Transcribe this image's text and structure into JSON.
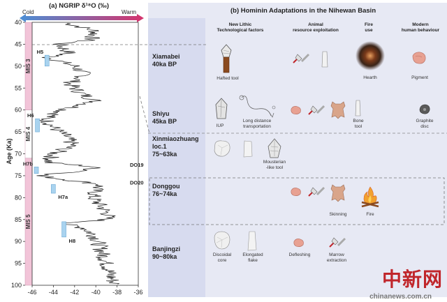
{
  "panel_a": {
    "title": "(a) NGRIP δ¹⁸O (‰)",
    "cold_label": "Cold",
    "warm_label": "Warm",
    "y_axis_label": "Age (Ka)",
    "x_ticks": [
      "-46",
      "-44",
      "-42",
      "-40",
      "-38",
      "-36"
    ],
    "y_ticks": [
      "40",
      "45",
      "50",
      "55",
      "60",
      "65",
      "70",
      "75",
      "80",
      "85",
      "90",
      "95",
      "100"
    ],
    "mis": [
      {
        "label": "MIS 3",
        "start": 40,
        "end": 60,
        "color": "#f2c4d8"
      },
      {
        "label": "MIS 4",
        "start": 60,
        "end": 71,
        "color": "#ffffff"
      },
      {
        "label": "MIS 5",
        "start": 71,
        "end": 100,
        "color": "#f2c4d8"
      }
    ],
    "heinrich": [
      {
        "label": "H5",
        "start": 47.5,
        "end": 50,
        "x": -44.8
      },
      {
        "label": "H6",
        "start": 62,
        "end": 65,
        "x": -45.7
      },
      {
        "label": "H7b",
        "start": 73,
        "end": 74.5,
        "x": -45.8
      },
      {
        "label": "H7a",
        "start": 77,
        "end": 79,
        "x": -44.2
      },
      {
        "label": "H8",
        "start": 85.5,
        "end": 89,
        "x": -43.2
      }
    ],
    "dansgaard_oeschger": [
      {
        "label": "DO19",
        "age": 72.5
      },
      {
        "label": "DO20",
        "age": 76.5
      }
    ]
  },
  "panel_b": {
    "title": "(b) Hominin Adaptations in the Nihewan Basin",
    "columns": [
      "New Lithic\nTechnological factors",
      "Animal\nresource exploitation",
      "Fire\nuse",
      "Modern\nhuman behaviour"
    ],
    "sites": [
      {
        "name": "Xiamabei\n40ka BP"
      },
      {
        "name": "Shiyu\n45ka BP"
      },
      {
        "name": "Xinmiaozhuang\nloc.1\n75~63ka"
      },
      {
        "name": "Donggou\n76~74ka"
      },
      {
        "name": "Banjingzi\n90~80ka"
      }
    ],
    "captions": {
      "hafted_tool": "Hafted tool",
      "hearth": "Hearth",
      "pigment": "Pigment",
      "iup": "IUP",
      "long_distance": "Long distance\ntransportation",
      "bone_tool": "Bone\ntool",
      "graphite_disc": "Graphite\ndisc",
      "mousterian": "Mousterian\n-like tool",
      "skinning": "Skinning",
      "fire": "Fire",
      "discoidal_core": "Discoidal\ncore",
      "elongated_flake": "Elongated\nflake",
      "defleshing": "Defleshing",
      "marrow_extraction": "Marrow\nextraction"
    }
  },
  "watermark": {
    "text": "中新网",
    "url": "chinanews.com.cn"
  },
  "colors": {
    "panel_bg": "#e7e9f4",
    "site_col_bg": "#d7dbef",
    "heinrich": "#a9d3ef",
    "mis_pink": "#f2c4d8",
    "gradient_cold": "#4a8fd6",
    "gradient_warm": "#d6336c"
  }
}
